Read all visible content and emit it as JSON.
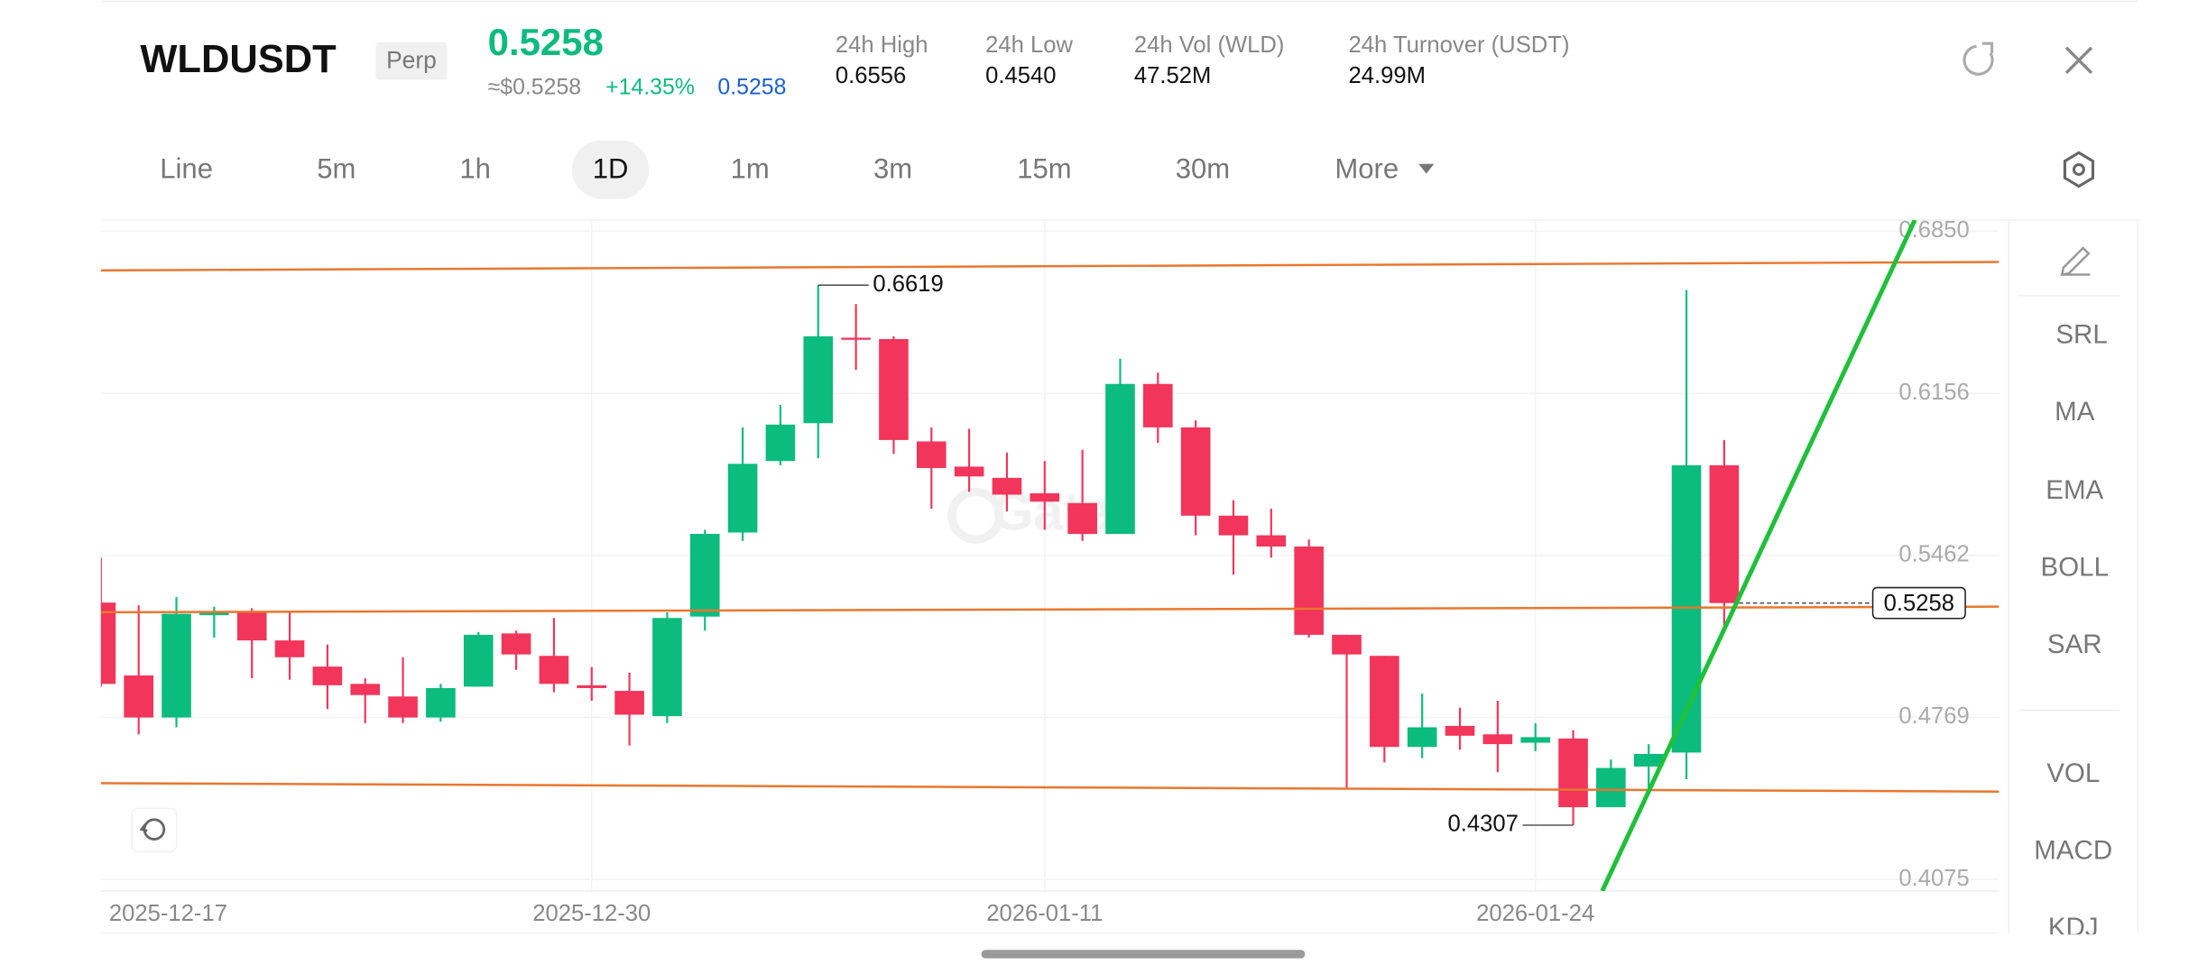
{
  "header": {
    "symbol": "WLDUSDT",
    "contract": "Perp",
    "last_price": "0.5258",
    "usd_price": "≈$0.5258",
    "change": "+14.35%",
    "mark_price": "0.5258",
    "stats": [
      {
        "label": "24h High",
        "value": "0.6556"
      },
      {
        "label": "24h Low",
        "value": "0.4540"
      },
      {
        "label": "24h Vol (WLD)",
        "value": "47.52M"
      },
      {
        "label": "24h Turnover (USDT)",
        "value": "24.99M"
      }
    ]
  },
  "tabs": [
    "Line",
    "5m",
    "1h",
    "1D",
    "1m",
    "3m",
    "15m",
    "30m",
    "More"
  ],
  "active_tab_index": 3,
  "indicators": [
    "SRL",
    "MA",
    "EMA",
    "BOLL",
    "SAR"
  ],
  "sub_indicators": [
    "VOL",
    "MACD",
    "KDJ"
  ],
  "watermark": "Gate",
  "chart_data": {
    "type": "candlestick",
    "categories": [
      "2025-12-17",
      null,
      null,
      null,
      null,
      null,
      null,
      null,
      null,
      null,
      null,
      null,
      null,
      "2025-12-30",
      null,
      null,
      null,
      null,
      null,
      null,
      null,
      null,
      null,
      null,
      null,
      "2026-01-11",
      null,
      null,
      null,
      null,
      null,
      null,
      null,
      null,
      null,
      null,
      null,
      null,
      "2026-01-24",
      null,
      null,
      null,
      null,
      null
    ],
    "open": [
      0.526,
      0.4948,
      0.4768,
      0.5206,
      0.5224,
      0.5098,
      0.4986,
      0.4912,
      0.4858,
      0.4768,
      0.49,
      0.5128,
      0.5032,
      0.4906,
      0.4882,
      0.4774,
      0.52,
      0.556,
      0.5866,
      0.6028,
      0.6394,
      0.6388,
      0.595,
      0.5842,
      0.5794,
      0.5728,
      0.5686,
      0.5554,
      0.6196,
      0.601,
      0.5632,
      0.5548,
      0.55,
      0.5122,
      0.5032,
      0.4642,
      0.4732,
      0.4696,
      0.466,
      0.4678,
      0.4384,
      0.4558,
      0.4618,
      0.5848
    ],
    "high": [
      0.5452,
      0.5248,
      0.5284,
      0.5242,
      0.5236,
      0.5224,
      0.508,
      0.4936,
      0.5026,
      0.4912,
      0.5134,
      0.514,
      0.5194,
      0.4984,
      0.496,
      0.5218,
      0.5572,
      0.601,
      0.6106,
      0.6619,
      0.6538,
      0.64,
      0.601,
      0.6004,
      0.5902,
      0.5866,
      0.5914,
      0.6304,
      0.6244,
      0.604,
      0.5698,
      0.5662,
      0.553,
      0.5122,
      0.5032,
      0.487,
      0.481,
      0.484,
      0.4744,
      0.4714,
      0.4588,
      0.4654,
      0.6598,
      0.5956
    ],
    "low": [
      0.49,
      0.4696,
      0.4726,
      0.511,
      0.4936,
      0.493,
      0.4804,
      0.4744,
      0.4744,
      0.475,
      0.49,
      0.4972,
      0.4876,
      0.484,
      0.4648,
      0.4744,
      0.514,
      0.5524,
      0.5848,
      0.5878,
      0.6256,
      0.5896,
      0.5662,
      0.5734,
      0.565,
      0.5572,
      0.5524,
      0.5554,
      0.5944,
      0.5548,
      0.538,
      0.5452,
      0.511,
      0.4462,
      0.4576,
      0.4594,
      0.463,
      0.4534,
      0.4624,
      0.4307,
      0.4384,
      0.4444,
      0.4504,
      0.5164
    ],
    "close": [
      0.4912,
      0.4768,
      0.5212,
      0.5224,
      0.5098,
      0.5026,
      0.4906,
      0.4864,
      0.4768,
      0.4894,
      0.5122,
      0.5038,
      0.4912,
      0.4894,
      0.478,
      0.5194,
      0.5554,
      0.5854,
      0.6022,
      0.64,
      0.6388,
      0.5956,
      0.5836,
      0.58,
      0.5722,
      0.5692,
      0.5554,
      0.6196,
      0.601,
      0.5632,
      0.5548,
      0.55,
      0.5122,
      0.5038,
      0.4642,
      0.4726,
      0.469,
      0.4654,
      0.4684,
      0.4384,
      0.4552,
      0.4612,
      0.5848,
      0.5258
    ],
    "up_color": "#0cbb7e",
    "down_color": "#f2355b",
    "last_price": 0.5258,
    "ylim": [
      0.6898,
      0.4025
    ],
    "yticks": [
      {
        "value": 0.685,
        "label": "0.6850"
      },
      0.6156,
      0.5462,
      0.4769,
      0.4075
    ],
    "grid": true
  }
}
